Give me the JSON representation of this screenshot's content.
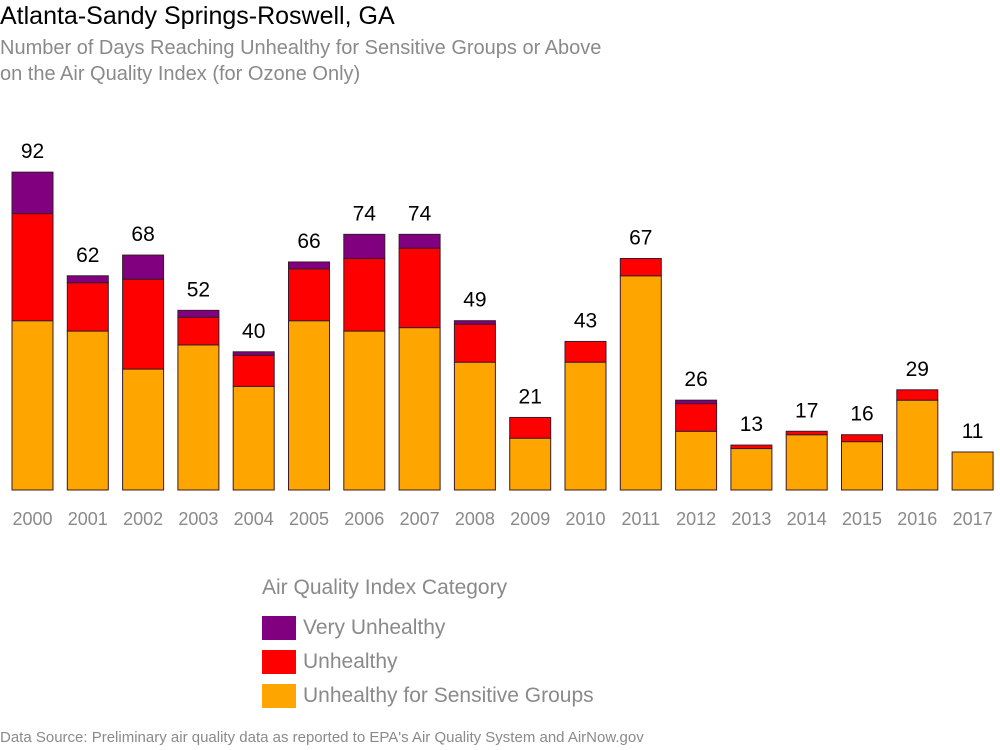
{
  "chart_data": {
    "type": "bar",
    "stacked": true,
    "title": "Atlanta-Sandy Springs-Roswell, GA",
    "subtitle": [
      "Number of Days Reaching Unhealthy for Sensitive Groups or Above",
      "on the Air Quality Index (for Ozone Only)"
    ],
    "categories": [
      "2000",
      "2001",
      "2002",
      "2003",
      "2004",
      "2005",
      "2006",
      "2007",
      "2008",
      "2009",
      "2010",
      "2011",
      "2012",
      "2013",
      "2014",
      "2015",
      "2016",
      "2017"
    ],
    "series": [
      {
        "name": "Unhealthy for Sensitive Groups",
        "color": "#ffa500",
        "values": [
          49,
          46,
          35,
          42,
          30,
          49,
          46,
          47,
          37,
          15,
          37,
          62,
          17,
          12,
          16,
          14,
          26,
          11
        ]
      },
      {
        "name": "Unhealthy",
        "color": "#ff0000",
        "values": [
          31,
          14,
          26,
          8,
          9,
          15,
          21,
          23,
          11,
          6,
          6,
          5,
          8,
          1,
          1,
          2,
          3,
          0
        ]
      },
      {
        "name": "Very Unhealthy",
        "color": "#800080",
        "values": [
          12,
          2,
          7,
          2,
          1,
          2,
          7,
          4,
          1,
          0,
          0,
          0,
          1,
          0,
          0,
          0,
          0,
          0
        ]
      }
    ],
    "totals": [
      92,
      62,
      68,
      52,
      40,
      66,
      74,
      74,
      49,
      21,
      43,
      67,
      26,
      13,
      17,
      16,
      29,
      11
    ],
    "ylim": [
      0,
      92
    ],
    "xlabel": "",
    "ylabel": "",
    "grid": false,
    "legend": {
      "title": "Air Quality Index Category",
      "position": "bottom",
      "items": [
        {
          "label": "Very Unhealthy",
          "color": "#800080"
        },
        {
          "label": "Unhealthy",
          "color": "#ff0000"
        },
        {
          "label": "Unhealthy for Sensitive Groups",
          "color": "#ffa500"
        }
      ]
    },
    "source": "Data Source: Preliminary air quality data as reported to EPA's Air Quality System and AirNow.gov"
  }
}
